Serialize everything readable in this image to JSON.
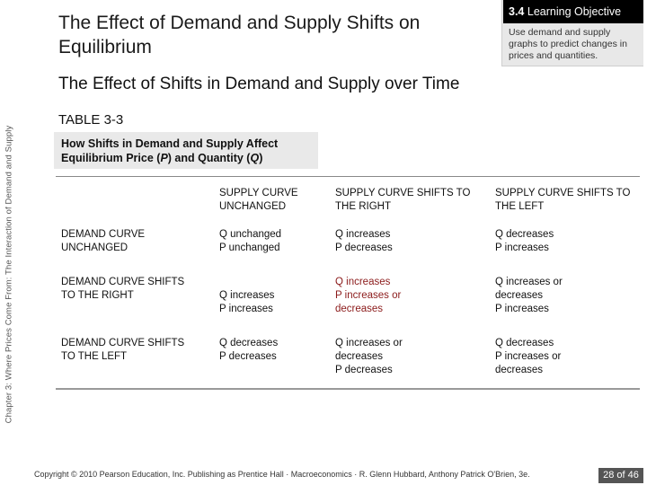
{
  "side_label": "Chapter 3: Where Prices Come From: The Interaction of Demand and Supply",
  "title": "The Effect of Demand and Supply Shifts on Equilibrium",
  "objective": {
    "number": "3.4",
    "label": "Learning Objective",
    "text": "Use demand and supply graphs to predict changes in prices and quantities."
  },
  "heading": "The Effect of Shifts in Demand and Supply over Time",
  "table": {
    "number": "TABLE 3-3",
    "caption_prefix": "How Shifts in Demand and Supply Affect Equilibrium Price (",
    "caption_p": "P",
    "caption_mid": ") and Quantity (",
    "caption_q": "Q",
    "caption_suffix": ")",
    "columns": [
      "SUPPLY CURVE UNCHANGED",
      "SUPPLY CURVE SHIFTS TO THE RIGHT",
      "SUPPLY CURVE SHIFTS TO THE LEFT"
    ],
    "rows": [
      {
        "label": "DEMAND CURVE UNCHANGED",
        "cells": [
          [
            "Q unchanged",
            "P unchanged"
          ],
          [
            "Q increases",
            "P decreases"
          ],
          [
            "Q decreases",
            "P increases"
          ]
        ]
      },
      {
        "label": "DEMAND CURVE SHIFTS TO THE RIGHT",
        "cells": [
          [
            "Q increases",
            "P increases"
          ],
          [
            "Q increases",
            "P increases or",
            "decreases"
          ],
          [
            "Q increases or",
            "decreases",
            "P increases"
          ]
        ]
      },
      {
        "label": "DEMAND CURVE SHIFTS TO THE LEFT",
        "cells": [
          [
            "Q decreases",
            "P decreases"
          ],
          [
            "Q increases or",
            "decreases",
            "P decreases"
          ],
          [
            "Q decreases",
            "P increases or",
            "decreases"
          ]
        ]
      }
    ]
  },
  "footer": "Copyright © 2010 Pearson Education, Inc. Publishing as Prentice Hall · Macroeconomics · R. Glenn Hubbard, Anthony Patrick O'Brien, 3e.",
  "page": "28 of 46"
}
